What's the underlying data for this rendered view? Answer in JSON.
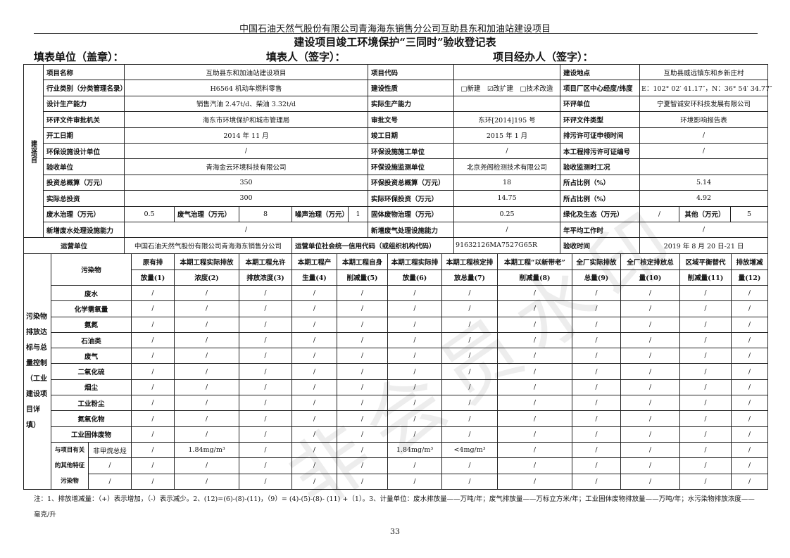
{
  "header": "中国石油天然气股份有限公司青海海东销售分公司互助县东和加油站建设项目",
  "title": "建设项目竣工环境保护“三同时”验收登记表",
  "fill_fields": [
    "填表单位（盖章）：",
    "填表人（签字）：",
    "项目经办人（签字）："
  ],
  "section_label": "建设项目",
  "rows": [
    {
      "l1": "项目名称",
      "v1": "互助县东和加油站建设项目",
      "l2": "项目代码",
      "v2": "",
      "l3": "建设地点",
      "v3": "互助县威远镇东和乡新庄村"
    },
    {
      "l1": "行业类别（分类管理名录）",
      "v1": "H6564 机动车燃料零售",
      "l2": "建设性质",
      "v2": "□新建　☑改扩建　□技术改造",
      "l3": "项目厂区中心经度/纬度",
      "v3": "E：102° 02′ 41.17″，N：36° 54′ 34.77″"
    },
    {
      "l1": "设计生产能力",
      "v1": "销售汽油 2.47t/d、柴油 3.32t/d",
      "l2": "实际生产能力",
      "v2": "",
      "l3": "环评单位",
      "v3": "宁夏智诚安环科技发展有限公司"
    },
    {
      "l1": "环评文件审批机关",
      "v1": "海东市环境保护和城市管理局",
      "l2": "审批文号",
      "v2": "东环[2014]195 号",
      "l3": "环评文件类型",
      "v3": "环境影响报告表"
    },
    {
      "l1": "开工日期",
      "v1": "2014 年 11 月",
      "l2": "竣工日期",
      "v2": "2015 年 1 月",
      "l3": "排污许可证申领时间",
      "v3": "/"
    },
    {
      "l1": "环保设施设计单位",
      "v1": "/",
      "l2": "环保设施施工单位",
      "v2": "/",
      "l3": "本工程排污许可证编号",
      "v3": "/"
    },
    {
      "l1": "验收单位",
      "v1": "青海金云环境科技有限公司",
      "l2": "环保设施监测单位",
      "v2": "北京尧阁检测技术有限公司",
      "l3": "验收监测时工况",
      "v3": ""
    },
    {
      "l1": "投资总概算（万元）",
      "v1": "350",
      "l2": "环保投资总概算（万元）",
      "v2": "18",
      "l3": "所占比例（%）",
      "v3": "5.14"
    },
    {
      "l1": "实际总投资",
      "v1": "300",
      "l2": "实际环保投资（万元）",
      "v2": "14.75",
      "l3": "所占比例（%）",
      "v3": "4.92"
    }
  ],
  "treat_row": {
    "wastewater_label": "废水治理（万元）",
    "wastewater": "0.5",
    "gas_label": "废气治理（万元）",
    "gas": "8",
    "noise_label": "噪声治理（万元）",
    "noise": "1",
    "solid_label": "固体废物治理（万元）",
    "solid": "0.25",
    "green_label": "绿化及生态（万元）",
    "green": "/",
    "other_label": "其他（万元）",
    "other": "5"
  },
  "cap_row": {
    "l1": "新增废水处理设施能力",
    "v1": "/",
    "l2": "新增废气处理设施能力",
    "v2": "/",
    "l3": "年平均工作时",
    "v3": "/"
  },
  "operator_row": {
    "l1": "运营单位",
    "v1": "中国石油天然气股份有限公司青海海东销售分公司",
    "l2": "运营单位社会统一信用代码（或组织机构代码）",
    "v2": "91632126MA7527G65R",
    "l3": "验收时间",
    "v3": "2019 年 8 月 20 日-21 日"
  },
  "emission": {
    "side_label": "污染物排放达标与总量控制（工业建设项目详填）",
    "pollutant_header": "污染物",
    "columns": [
      [
        "原有排",
        "放量(1)"
      ],
      [
        "本期工程实际排放",
        "浓度(2)"
      ],
      [
        "本期工程允许",
        "排放浓度(3)"
      ],
      [
        "本期工程产",
        "生量(4)"
      ],
      [
        "本期工程自身",
        "削减量(5)"
      ],
      [
        "本期工程实际排",
        "放量(6)"
      ],
      [
        "本期工程核定排",
        "放总量(7)"
      ],
      [
        "本期工程“以新带老”",
        "削减量(8)"
      ],
      [
        "全厂实际排放",
        "总量(9)"
      ],
      [
        "全厂核定排放总",
        "量(10)"
      ],
      [
        "区域平衡替代",
        "削减量(11)"
      ],
      [
        "排放增减",
        "量(12)"
      ]
    ],
    "rows": [
      {
        "name": "废水",
        "values": [
          "/",
          "/",
          "/",
          "/",
          "/",
          "/",
          "/",
          "/",
          "/",
          "/",
          "/",
          "/"
        ]
      },
      {
        "name": "化学需氧量",
        "values": [
          "/",
          "/",
          "/",
          "/",
          "/",
          "/",
          "/",
          "/",
          "/",
          "/",
          "/",
          "/"
        ]
      },
      {
        "name": "氨氮",
        "values": [
          "/",
          "/",
          "/",
          "/",
          "/",
          "/",
          "/",
          "/",
          "/",
          "/",
          "/",
          "/"
        ]
      },
      {
        "name": "石油类",
        "values": [
          "/",
          "/",
          "/",
          "/",
          "/",
          "/",
          "/",
          "/",
          "/",
          "/",
          "/",
          "/"
        ]
      },
      {
        "name": "废气",
        "values": [
          "/",
          "/",
          "/",
          "/",
          "/",
          "/",
          "/",
          "/",
          "/",
          "/",
          "/",
          "/"
        ]
      },
      {
        "name": "二氧化硫",
        "values": [
          "/",
          "/",
          "/",
          "/",
          "/",
          "/",
          "/",
          "/",
          "/",
          "/",
          "/",
          "/"
        ]
      },
      {
        "name": "烟尘",
        "values": [
          "/",
          "/",
          "/",
          "/",
          "/",
          "/",
          "/",
          "/",
          "/",
          "/",
          "/",
          "/"
        ]
      },
      {
        "name": "工业粉尘",
        "values": [
          "/",
          "/",
          "/",
          "/",
          "/",
          "/",
          "/",
          "/",
          "/",
          "/",
          "/",
          "/"
        ]
      },
      {
        "name": "氮氧化物",
        "values": [
          "/",
          "/",
          "/",
          "/",
          "/",
          "/",
          "/",
          "/",
          "/",
          "/",
          "/",
          "/"
        ]
      },
      {
        "name": "工业固体废物",
        "values": [
          "/",
          "/",
          "/",
          "/",
          "/",
          "/",
          "/",
          "/",
          "/",
          "/",
          "/",
          "/"
        ]
      }
    ],
    "other_group_label": "与项目有关的其他特征污染物",
    "other_rows": [
      {
        "name": "非甲烷总烃",
        "values": [
          "/",
          "1.84mg/m³",
          "/",
          "/",
          "/",
          "1.84mg/m³",
          "<4mg/m³",
          "/",
          "/",
          "/",
          "/",
          "/"
        ]
      },
      {
        "name": "/",
        "values": [
          "/",
          "/",
          "/",
          "/",
          "/",
          "/",
          "/",
          "/",
          "/",
          "/",
          "/",
          "/"
        ]
      },
      {
        "name": "/",
        "values": [
          "/",
          "/",
          "/",
          "/",
          "/",
          "/",
          "/",
          "/",
          "/",
          "/",
          "/",
          "/"
        ]
      }
    ]
  },
  "note": "注：1、排放增减量：（+）表示增加，（-）表示减少。2、(12)=(6)-(8)-(11)，（9）= (4)-(5)-(8)- (11) +（1）。3、计量单位：废水排放量——万吨/年；废气排放量——万标立方米/年；工业固体废物排放量——万吨/年；水污染物排放浓度——毫克/升",
  "page_number": "33",
  "watermark": "非会员水印"
}
